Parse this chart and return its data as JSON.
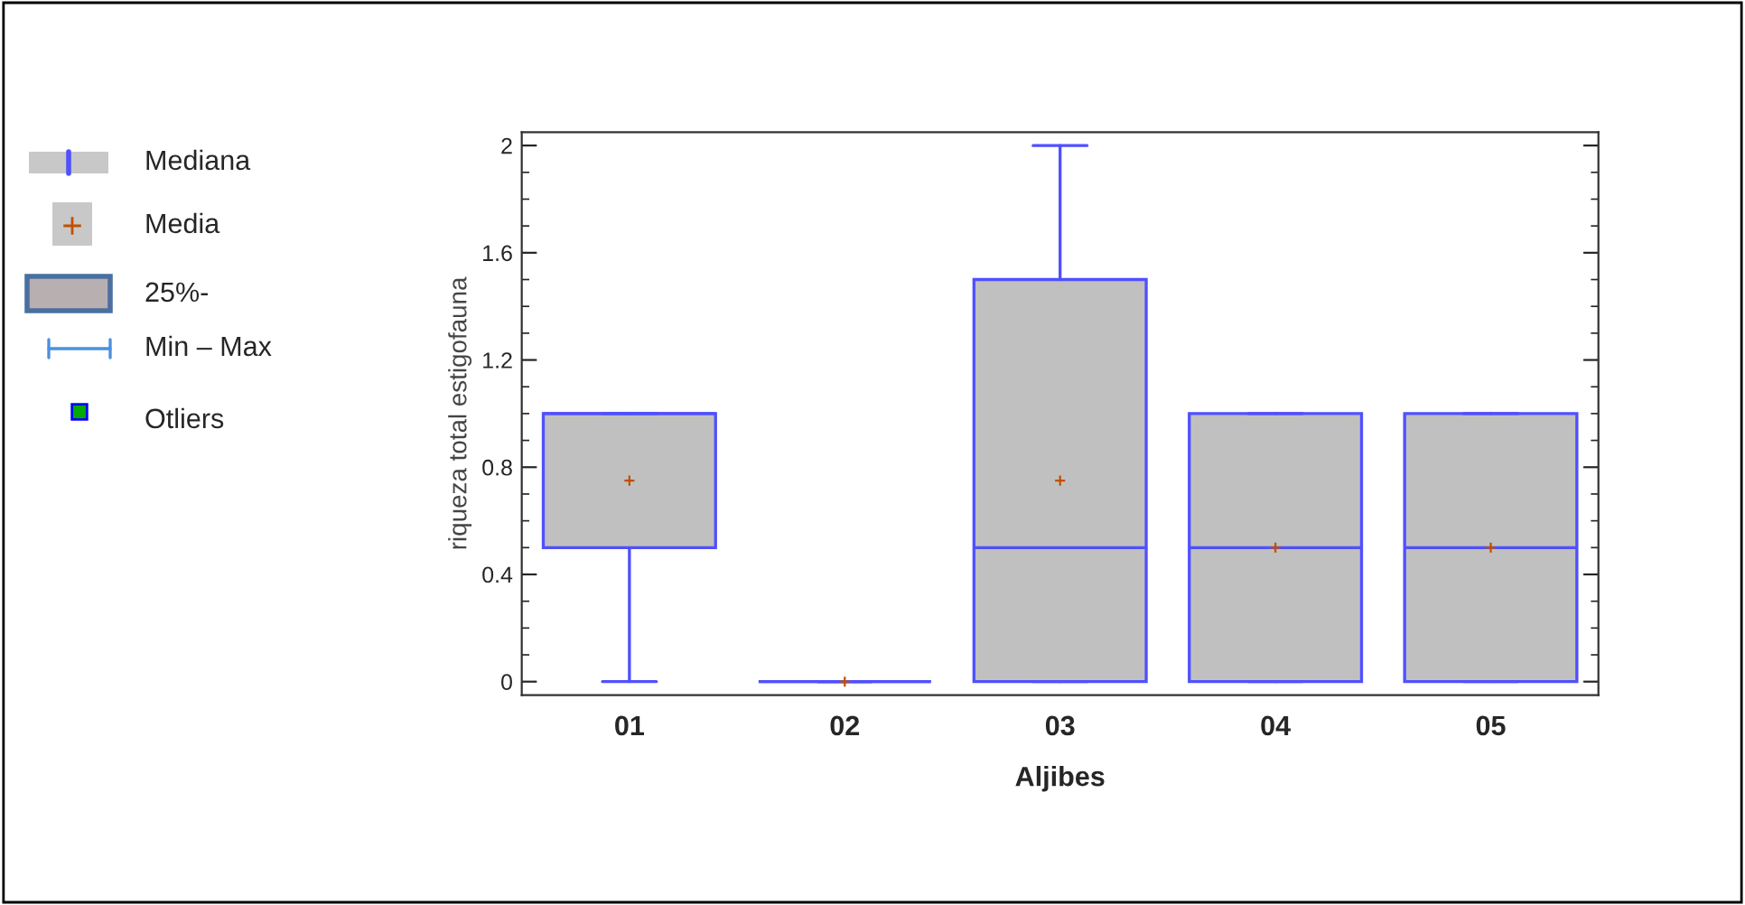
{
  "chart_data": {
    "type": "box",
    "xlabel": "Aljibes",
    "ylabel": "riqueza total estigofauna",
    "categories": [
      "01",
      "02",
      "03",
      "04",
      "05"
    ],
    "boxes": [
      {
        "low": 0,
        "q1": 0.5,
        "median": 1,
        "q3": 1,
        "high": 1,
        "mean": 0.75
      },
      {
        "low": 0,
        "q1": 0,
        "median": 0,
        "q3": 0,
        "high": 0,
        "mean": 0
      },
      {
        "low": 0,
        "q1": 0,
        "median": 0.5,
        "q3": 1.5,
        "high": 2,
        "mean": 0.75
      },
      {
        "low": 0,
        "q1": 0,
        "median": 0.5,
        "q3": 1,
        "high": 1,
        "mean": 0.5
      },
      {
        "low": 0,
        "q1": 0,
        "median": 0.5,
        "q3": 1,
        "high": 1,
        "mean": 0.5
      }
    ],
    "ylim": [
      -0.05,
      2.05
    ],
    "yticks": [
      0,
      0.4,
      0.8,
      1.2,
      1.6,
      2
    ],
    "annotations": [
      "Mediana",
      "Media",
      "25%-",
      "Min – Max",
      "Otliers"
    ],
    "grid": false
  }
}
